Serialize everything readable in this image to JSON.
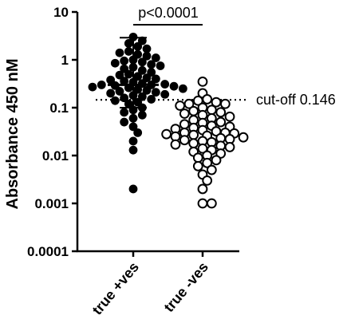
{
  "chart_data": {
    "type": "scatter",
    "title": "",
    "ylabel": "Absorbance 450 nM",
    "xlabel": "",
    "yscale": "log",
    "ylim": [
      0.0001,
      10
    ],
    "yticks": [
      "0.0001",
      "0.001",
      "0.01",
      "0.1",
      "1",
      "10"
    ],
    "categories": [
      "true +ves",
      "true -ves"
    ],
    "series": [
      {
        "name": "true +ves",
        "marker": "filled-circle",
        "color": "#000000",
        "values": [
          3.0,
          2.5,
          2.2,
          1.9,
          1.7,
          1.5,
          1.4,
          1.3,
          1.2,
          1.1,
          1.0,
          0.95,
          0.9,
          0.85,
          0.8,
          0.75,
          0.7,
          0.65,
          0.6,
          0.55,
          0.5,
          0.48,
          0.45,
          0.42,
          0.4,
          0.38,
          0.36,
          0.34,
          0.32,
          0.31,
          0.3,
          0.3,
          0.29,
          0.28,
          0.27,
          0.26,
          0.25,
          0.24,
          0.23,
          0.22,
          0.21,
          0.2,
          0.19,
          0.18,
          0.17,
          0.16,
          0.15,
          0.14,
          0.13,
          0.12,
          0.1,
          0.09,
          0.08,
          0.07,
          0.06,
          0.05,
          0.04,
          0.03,
          0.02,
          0.013,
          0.002
        ],
        "median": 0.3,
        "error_upper": 2.9,
        "error_lower": 0.1
      },
      {
        "name": "true -ves",
        "marker": "open-circle",
        "color": "#000000",
        "values": [
          0.35,
          0.2,
          0.15,
          0.14,
          0.13,
          0.12,
          0.12,
          0.11,
          0.1,
          0.09,
          0.085,
          0.08,
          0.075,
          0.07,
          0.065,
          0.06,
          0.055,
          0.05,
          0.048,
          0.045,
          0.042,
          0.04,
          0.038,
          0.036,
          0.034,
          0.032,
          0.03,
          0.03,
          0.029,
          0.028,
          0.027,
          0.026,
          0.025,
          0.024,
          0.023,
          0.022,
          0.021,
          0.02,
          0.019,
          0.018,
          0.017,
          0.016,
          0.015,
          0.014,
          0.013,
          0.012,
          0.011,
          0.01,
          0.009,
          0.008,
          0.007,
          0.006,
          0.005,
          0.004,
          0.003,
          0.002,
          0.001,
          0.001
        ]
      }
    ],
    "reference_line": {
      "value": 0.146,
      "label": "cut-off 0.146",
      "style": "dotted"
    },
    "significance": {
      "label": "p<0.0001",
      "between": [
        "true +ves",
        "true -ves"
      ]
    },
    "grid": false,
    "legend": "none"
  }
}
